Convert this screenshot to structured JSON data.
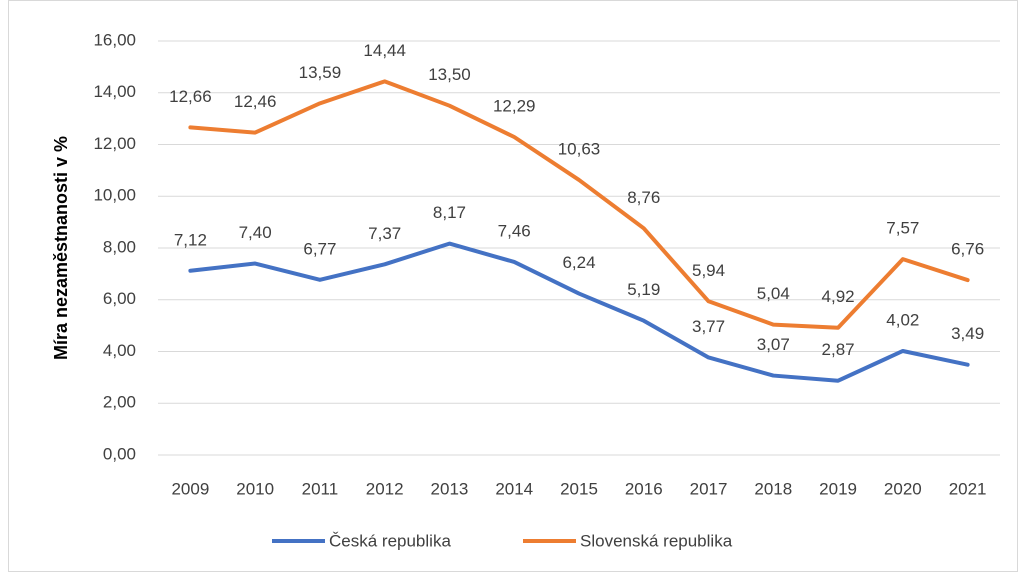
{
  "chart_data": {
    "type": "line",
    "y_label": "Míra nezaměstnanosti v %",
    "categories": [
      "2009",
      "2010",
      "2011",
      "2012",
      "2013",
      "2014",
      "2015",
      "2016",
      "2017",
      "2018",
      "2019",
      "2020",
      "2021"
    ],
    "series": [
      {
        "name": "Česká republika",
        "color": "#4472c4",
        "values": [
          7.12,
          7.4,
          6.77,
          7.37,
          8.17,
          7.46,
          6.24,
          5.19,
          3.77,
          3.07,
          2.87,
          4.02,
          3.49
        ],
        "value_labels": [
          "7,12",
          "7,40",
          "6,77",
          "7,37",
          "8,17",
          "7,46",
          "6,24",
          "5,19",
          "3,77",
          "3,07",
          "2,87",
          "4,02",
          "3,49"
        ]
      },
      {
        "name": "Slovenská republika",
        "color": "#ed7d31",
        "values": [
          12.66,
          12.46,
          13.59,
          14.44,
          13.5,
          12.29,
          10.63,
          8.76,
          5.94,
          5.04,
          4.92,
          7.57,
          6.76
        ],
        "value_labels": [
          "12,66",
          "12,46",
          "13,59",
          "14,44",
          "13,50",
          "12,29",
          "10,63",
          "8,76",
          "5,94",
          "5,04",
          "4,92",
          "7,57",
          "6,76"
        ]
      }
    ],
    "ylim": [
      0,
      16
    ],
    "yticks": [
      {
        "value": 0,
        "label": "0,00"
      },
      {
        "value": 2,
        "label": "2,00"
      },
      {
        "value": 4,
        "label": "4,00"
      },
      {
        "value": 6,
        "label": "6,00"
      },
      {
        "value": 8,
        "label": "8,00"
      },
      {
        "value": 10,
        "label": "10,00"
      },
      {
        "value": 12,
        "label": "12,00"
      },
      {
        "value": 14,
        "label": "14,00"
      },
      {
        "value": 16,
        "label": "16,00"
      }
    ],
    "grid": true,
    "legend": "bottom"
  }
}
